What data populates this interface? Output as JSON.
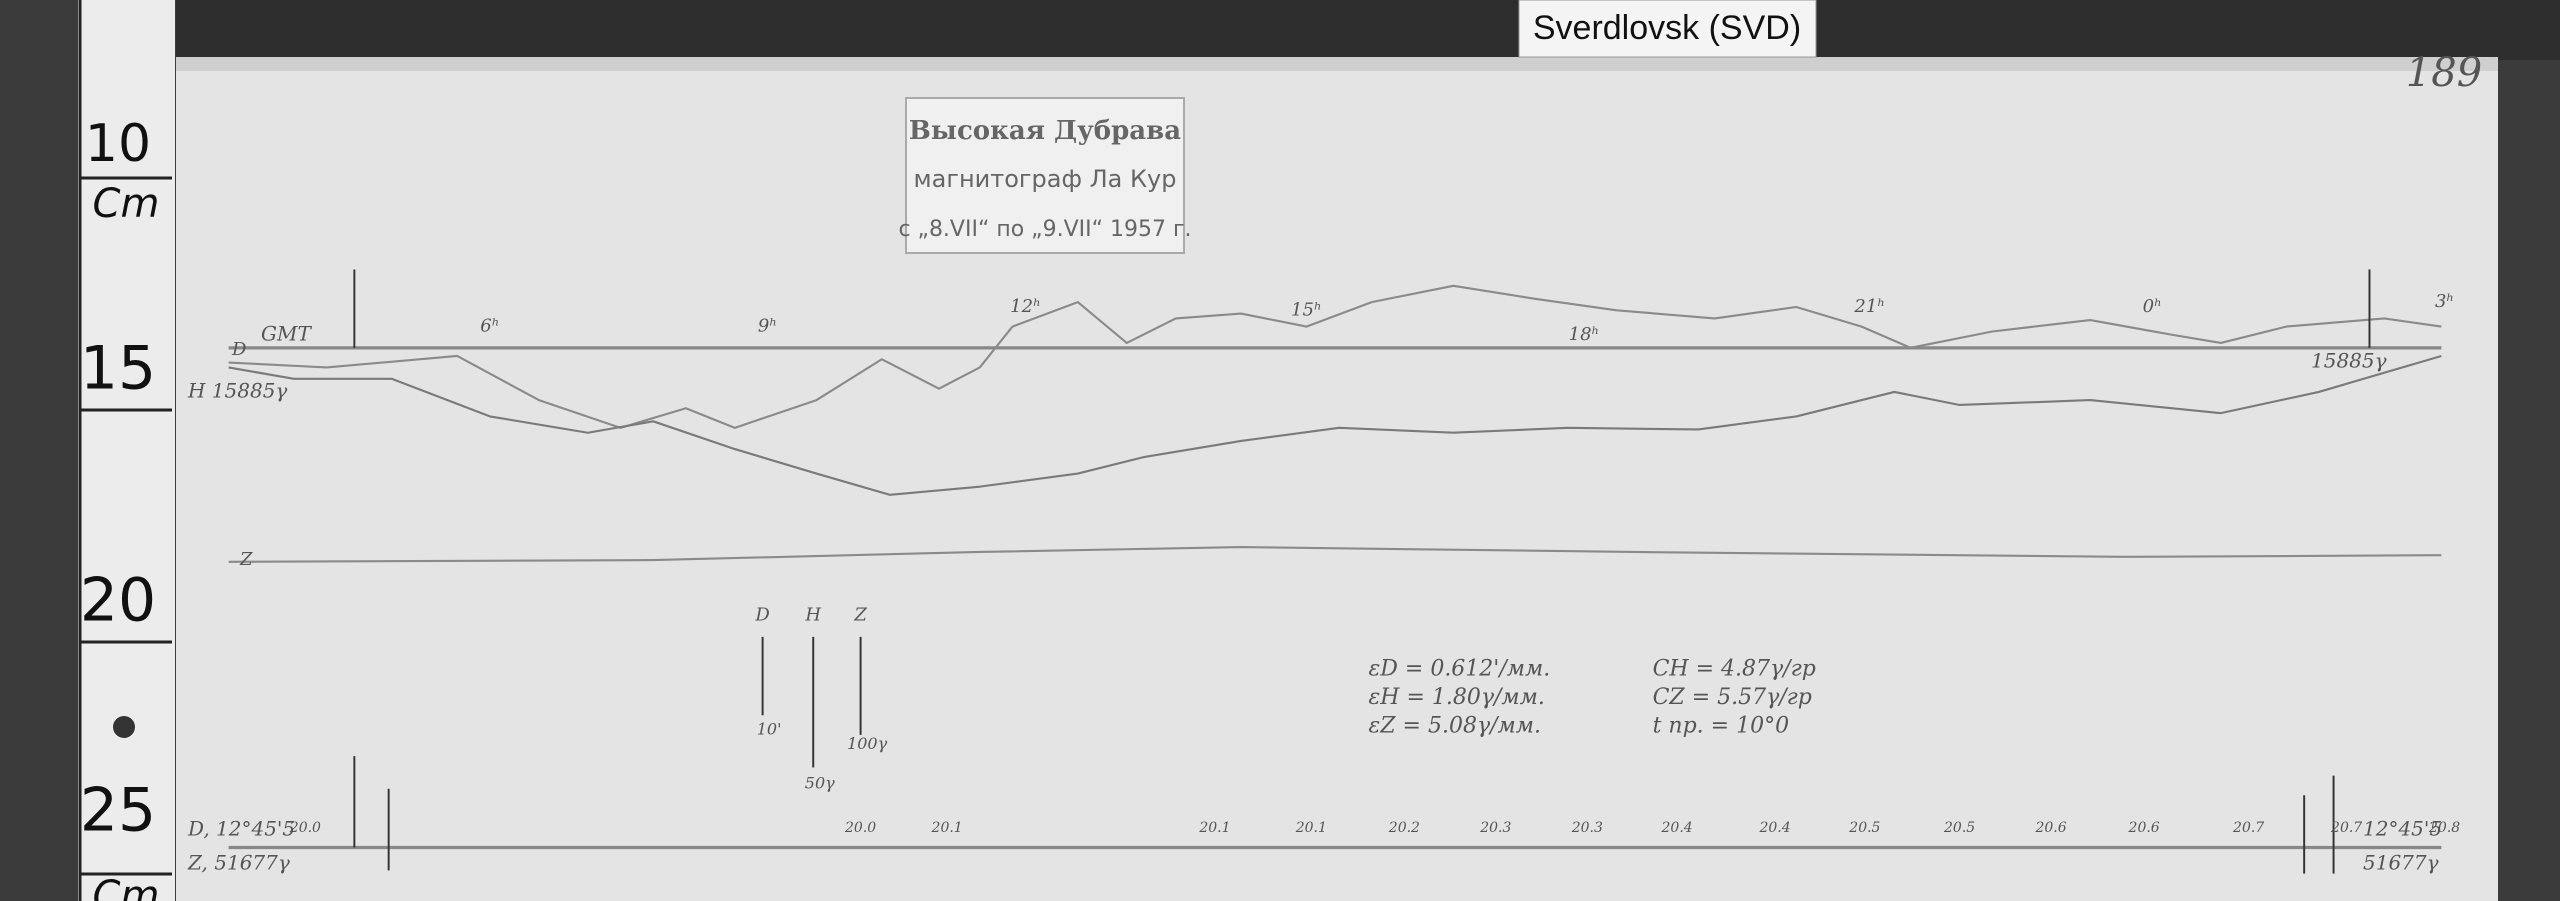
{
  "header": {
    "tab_label": "Sverdlovsk (SVD)",
    "sheet_number": "189"
  },
  "ruler": {
    "labels": [
      "10",
      "Cm",
      "15",
      "20",
      "25",
      "Cm"
    ]
  },
  "stamp": {
    "lines": [
      "Высокая Дубрава",
      "магнитограф Ла Кур",
      "с „8.VII“ по „9.VII“ 1957 г."
    ]
  },
  "time_axis": {
    "label": "GMT",
    "hours": [
      "6ʰ",
      "9ʰ",
      "12ʰ",
      "15ʰ",
      "18ʰ",
      "21ʰ",
      "0ʰ",
      "3ʰ"
    ]
  },
  "traces": {
    "d_label": "D",
    "h_label": "H 15885γ",
    "h_right_label": "15885γ",
    "z_label": "Z"
  },
  "scale_bars": [
    {
      "name": "D",
      "label": "10'"
    },
    {
      "name": "H",
      "label": "50γ"
    },
    {
      "name": "Z",
      "label": "100γ"
    }
  ],
  "constants": {
    "left": [
      "εD = 0.612'/мм.",
      "εH = 1.80γ/мм.",
      "εZ = 5.08γ/мм."
    ],
    "right": [
      "CH = 4.87γ/гр",
      "CZ = 5.57γ/гр",
      "t пр. = 10°0"
    ]
  },
  "baseline_labels": {
    "left": [
      "D, 12°45'5",
      "Z, 51677γ"
    ],
    "right": [
      "12°45'5",
      "51677γ"
    ]
  },
  "temperatures": [
    "20.0",
    "20.0",
    "20.1",
    "20.1",
    "20.1",
    "20.2",
    "20.3",
    "20.3",
    "20.4",
    "20.4",
    "20.5",
    "20.5",
    "20.6",
    "20.6",
    "20.7",
    "20.7",
    "20.8"
  ]
}
